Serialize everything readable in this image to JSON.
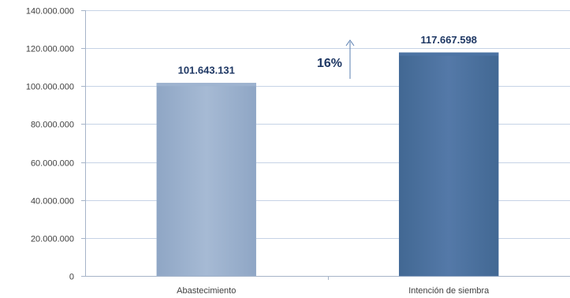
{
  "chart_data": {
    "type": "bar",
    "title": "",
    "xlabel": "",
    "ylabel": "",
    "categories": [
      "Abastecimiento",
      "Intención de siembra"
    ],
    "values": [
      101643131,
      117667598
    ],
    "data_labels": [
      "101.643.131",
      "117.667.598"
    ],
    "ylim": [
      0,
      140000000
    ],
    "y_ticks": [
      0,
      20000000,
      40000000,
      60000000,
      80000000,
      100000000,
      120000000,
      140000000
    ],
    "y_tick_labels": [
      "0",
      "20.000.000",
      "40.000.000",
      "60.000.000",
      "80.000.000",
      "100.000.000",
      "120.000.000",
      "140.000.000"
    ],
    "grid": true,
    "legend": "none",
    "bar_colors": [
      "#9fb4d0",
      "#4e74a4"
    ],
    "annotation": {
      "text": "16%",
      "direction": "up-arrow"
    }
  }
}
